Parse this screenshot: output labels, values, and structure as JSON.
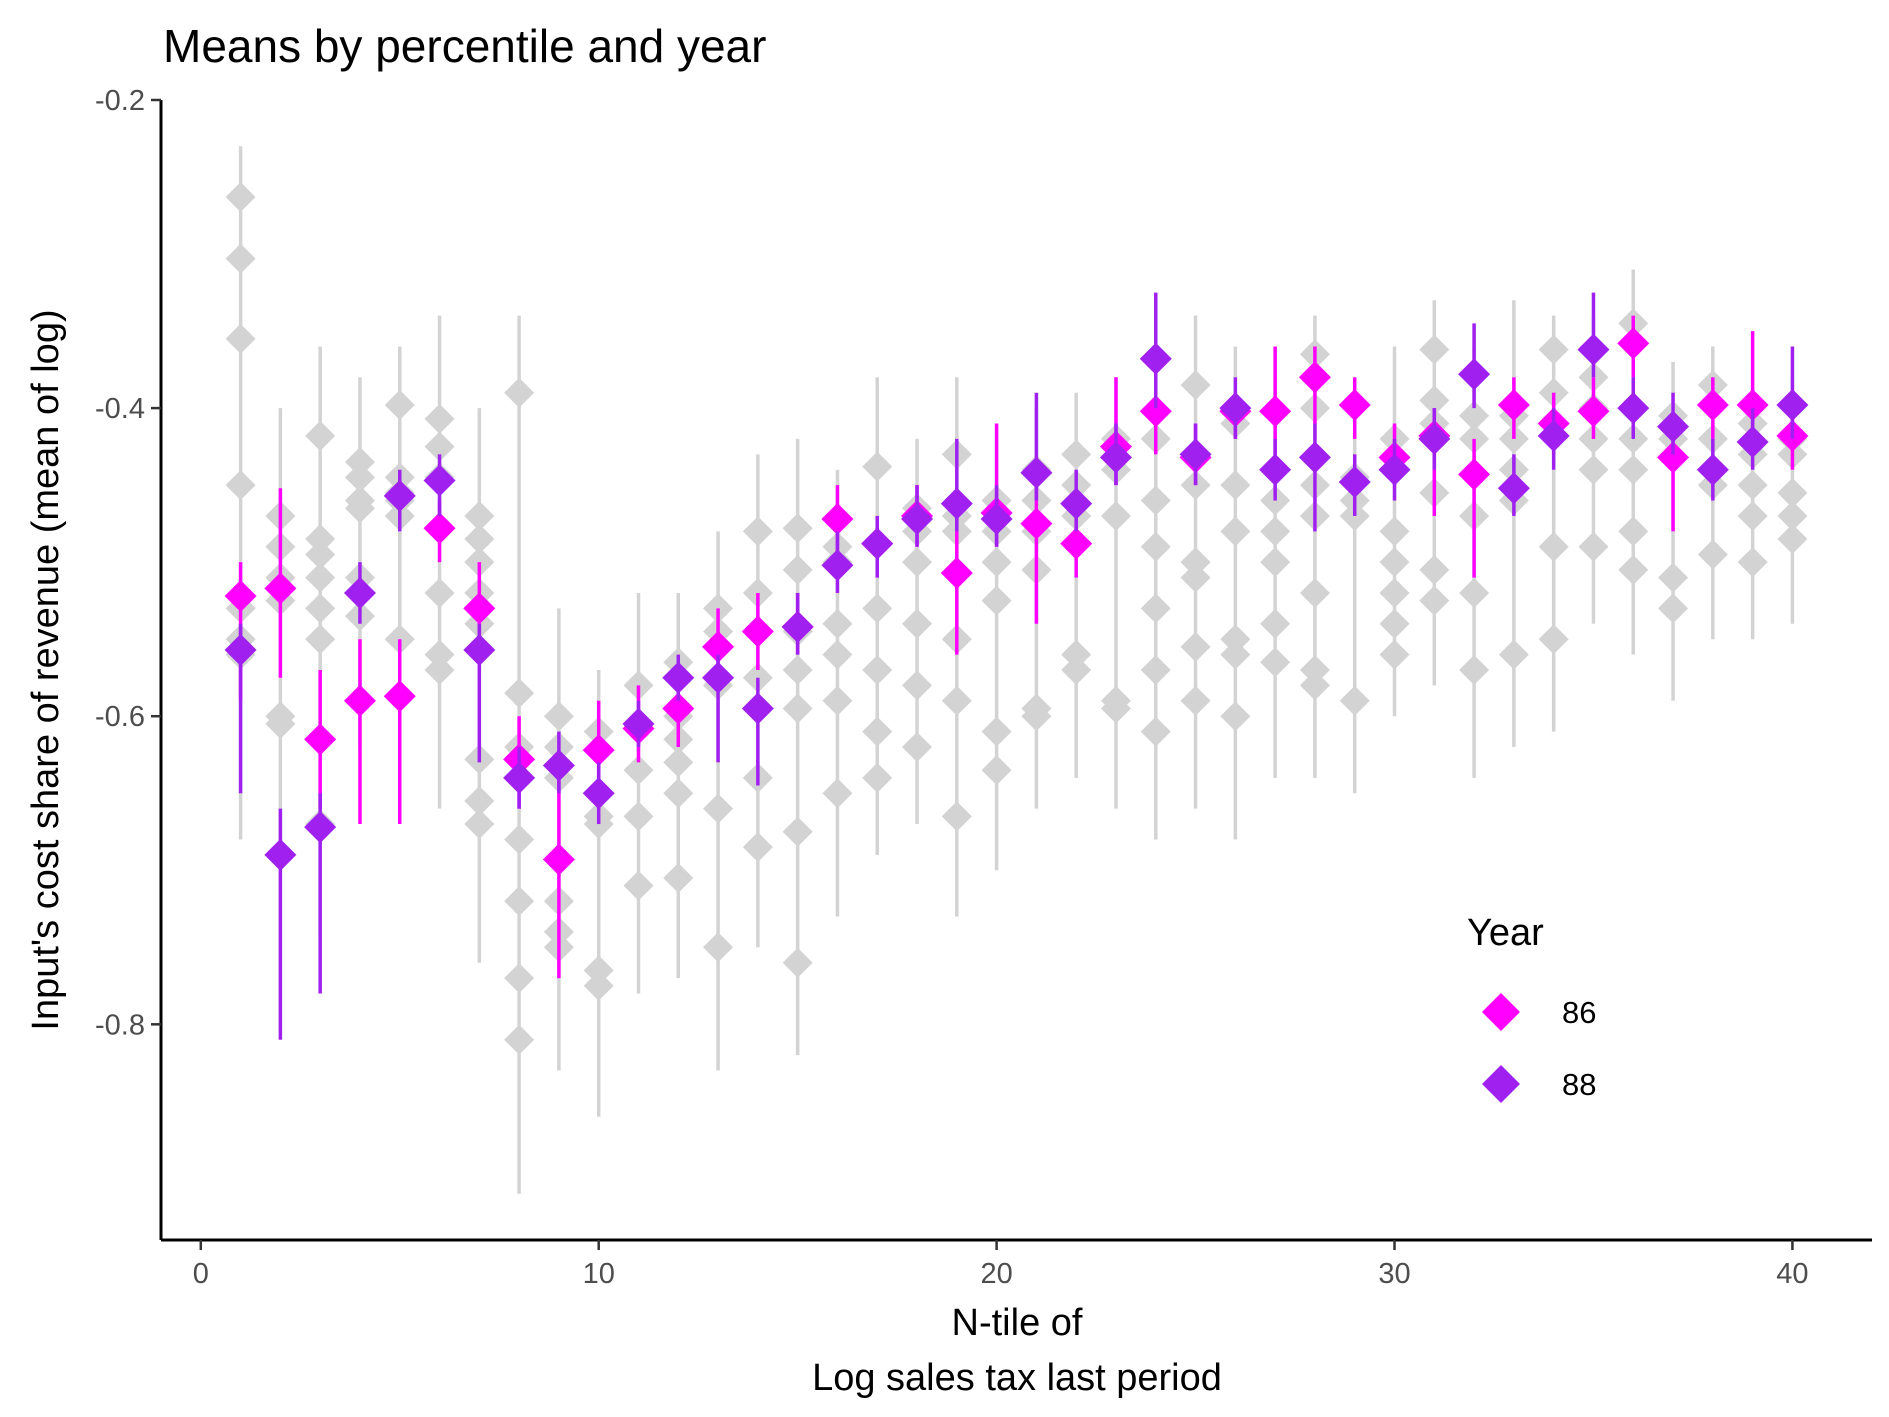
{
  "chart_data": {
    "type": "scatter",
    "title": "Means by percentile and year",
    "xlabel_lines": [
      "N-tile of",
      "Log sales tax last period"
    ],
    "ylabel": "Input's cost share of revenue (mean of log)",
    "xlim": [
      -1,
      42
    ],
    "ylim": [
      -0.94,
      -0.2
    ],
    "x_ticks": [
      0,
      10,
      20,
      30,
      40
    ],
    "x_tick_labels": [
      "0",
      "10",
      "20",
      "30",
      "40"
    ],
    "y_ticks": [
      -0.2,
      -0.4,
      -0.6,
      -0.8
    ],
    "y_tick_labels": [
      "-0.2",
      "-0.4",
      "-0.6",
      "-0.8"
    ],
    "grid": false,
    "legend": {
      "title": "Year",
      "placement": "bottom-right",
      "entries": [
        {
          "label": "86",
          "color": "#ff00ff"
        },
        {
          "label": "88",
          "color": "#a020f0"
        }
      ]
    },
    "other_years_color": "#d3d3d3",
    "series": [
      {
        "name": "86",
        "color": "#ff00ff",
        "points": [
          {
            "x": 1,
            "y": -0.522,
            "lo": -0.59,
            "hi": -0.5
          },
          {
            "x": 2,
            "y": -0.517,
            "lo": -0.575,
            "hi": -0.452
          },
          {
            "x": 3,
            "y": -0.615,
            "lo": -0.66,
            "hi": -0.57
          },
          {
            "x": 4,
            "y": -0.59,
            "lo": -0.67,
            "hi": -0.55
          },
          {
            "x": 5,
            "y": -0.587,
            "lo": -0.67,
            "hi": -0.55
          },
          {
            "x": 6,
            "y": -0.478,
            "lo": -0.5,
            "hi": -0.46
          },
          {
            "x": 7,
            "y": -0.53,
            "lo": -0.56,
            "hi": -0.5
          },
          {
            "x": 8,
            "y": -0.628,
            "lo": -0.66,
            "hi": -0.6
          },
          {
            "x": 9,
            "y": -0.693,
            "lo": -0.77,
            "hi": -0.64
          },
          {
            "x": 10,
            "y": -0.622,
            "lo": -0.66,
            "hi": -0.59
          },
          {
            "x": 11,
            "y": -0.608,
            "lo": -0.63,
            "hi": -0.58
          },
          {
            "x": 12,
            "y": -0.595,
            "lo": -0.62,
            "hi": -0.57
          },
          {
            "x": 13,
            "y": -0.555,
            "lo": -0.58,
            "hi": -0.53
          },
          {
            "x": 14,
            "y": -0.545,
            "lo": -0.57,
            "hi": -0.52
          },
          {
            "x": 15,
            "y": -0.542,
            "lo": -0.56,
            "hi": -0.52
          },
          {
            "x": 16,
            "y": -0.472,
            "lo": -0.5,
            "hi": -0.45
          },
          {
            "x": 17,
            "y": -0.488,
            "lo": -0.51,
            "hi": -0.47
          },
          {
            "x": 18,
            "y": -0.47,
            "lo": -0.49,
            "hi": -0.45
          },
          {
            "x": 19,
            "y": -0.507,
            "lo": -0.56,
            "hi": -0.47
          },
          {
            "x": 20,
            "y": -0.468,
            "lo": -0.49,
            "hi": -0.41
          },
          {
            "x": 21,
            "y": -0.475,
            "lo": -0.54,
            "hi": -0.45
          },
          {
            "x": 22,
            "y": -0.488,
            "lo": -0.51,
            "hi": -0.47
          },
          {
            "x": 23,
            "y": -0.425,
            "lo": -0.45,
            "hi": -0.38
          },
          {
            "x": 24,
            "y": -0.402,
            "lo": -0.43,
            "hi": -0.38
          },
          {
            "x": 25,
            "y": -0.432,
            "lo": -0.45,
            "hi": -0.41
          },
          {
            "x": 26,
            "y": -0.402,
            "lo": -0.42,
            "hi": -0.39
          },
          {
            "x": 27,
            "y": -0.402,
            "lo": -0.44,
            "hi": -0.36
          },
          {
            "x": 28,
            "y": -0.38,
            "lo": -0.41,
            "hi": -0.36
          },
          {
            "x": 29,
            "y": -0.398,
            "lo": -0.42,
            "hi": -0.38
          },
          {
            "x": 30,
            "y": -0.432,
            "lo": -0.45,
            "hi": -0.41
          },
          {
            "x": 31,
            "y": -0.418,
            "lo": -0.47,
            "hi": -0.4
          },
          {
            "x": 32,
            "y": -0.443,
            "lo": -0.51,
            "hi": -0.42
          },
          {
            "x": 33,
            "y": -0.398,
            "lo": -0.42,
            "hi": -0.38
          },
          {
            "x": 34,
            "y": -0.41,
            "lo": -0.43,
            "hi": -0.39
          },
          {
            "x": 35,
            "y": -0.402,
            "lo": -0.42,
            "hi": -0.38
          },
          {
            "x": 36,
            "y": -0.358,
            "lo": -0.38,
            "hi": -0.34
          },
          {
            "x": 37,
            "y": -0.432,
            "lo": -0.48,
            "hi": -0.41
          },
          {
            "x": 38,
            "y": -0.398,
            "lo": -0.42,
            "hi": -0.38
          },
          {
            "x": 39,
            "y": -0.398,
            "lo": -0.42,
            "hi": -0.35
          },
          {
            "x": 40,
            "y": -0.418,
            "lo": -0.44,
            "hi": -0.4
          }
        ]
      },
      {
        "name": "88",
        "color": "#a020f0",
        "points": [
          {
            "x": 1,
            "y": -0.557,
            "lo": -0.65,
            "hi": -0.54
          },
          {
            "x": 2,
            "y": -0.69,
            "lo": -0.81,
            "hi": -0.66
          },
          {
            "x": 3,
            "y": -0.672,
            "lo": -0.78,
            "hi": -0.65
          },
          {
            "x": 4,
            "y": -0.52,
            "lo": -0.54,
            "hi": -0.5
          },
          {
            "x": 5,
            "y": -0.457,
            "lo": -0.48,
            "hi": -0.44
          },
          {
            "x": 6,
            "y": -0.447,
            "lo": -0.47,
            "hi": -0.43
          },
          {
            "x": 7,
            "y": -0.557,
            "lo": -0.63,
            "hi": -0.54
          },
          {
            "x": 8,
            "y": -0.64,
            "lo": -0.66,
            "hi": -0.62
          },
          {
            "x": 9,
            "y": -0.632,
            "lo": -0.65,
            "hi": -0.61
          },
          {
            "x": 10,
            "y": -0.65,
            "lo": -0.67,
            "hi": -0.63
          },
          {
            "x": 11,
            "y": -0.605,
            "lo": -0.62,
            "hi": -0.59
          },
          {
            "x": 12,
            "y": -0.575,
            "lo": -0.59,
            "hi": -0.56
          },
          {
            "x": 13,
            "y": -0.575,
            "lo": -0.63,
            "hi": -0.56
          },
          {
            "x": 14,
            "y": -0.595,
            "lo": -0.645,
            "hi": -0.575
          },
          {
            "x": 15,
            "y": -0.542,
            "lo": -0.56,
            "hi": -0.52
          },
          {
            "x": 16,
            "y": -0.502,
            "lo": -0.52,
            "hi": -0.48
          },
          {
            "x": 17,
            "y": -0.488,
            "lo": -0.51,
            "hi": -0.47
          },
          {
            "x": 18,
            "y": -0.472,
            "lo": -0.49,
            "hi": -0.45
          },
          {
            "x": 19,
            "y": -0.462,
            "lo": -0.48,
            "hi": -0.42
          },
          {
            "x": 20,
            "y": -0.472,
            "lo": -0.49,
            "hi": -0.45
          },
          {
            "x": 21,
            "y": -0.442,
            "lo": -0.46,
            "hi": -0.39
          },
          {
            "x": 22,
            "y": -0.462,
            "lo": -0.48,
            "hi": -0.44
          },
          {
            "x": 23,
            "y": -0.432,
            "lo": -0.45,
            "hi": -0.41
          },
          {
            "x": 24,
            "y": -0.368,
            "lo": -0.4,
            "hi": -0.325
          },
          {
            "x": 25,
            "y": -0.43,
            "lo": -0.45,
            "hi": -0.41
          },
          {
            "x": 26,
            "y": -0.4,
            "lo": -0.42,
            "hi": -0.38
          },
          {
            "x": 27,
            "y": -0.44,
            "lo": -0.46,
            "hi": -0.42
          },
          {
            "x": 28,
            "y": -0.432,
            "lo": -0.48,
            "hi": -0.41
          },
          {
            "x": 29,
            "y": -0.448,
            "lo": -0.47,
            "hi": -0.43
          },
          {
            "x": 30,
            "y": -0.44,
            "lo": -0.46,
            "hi": -0.42
          },
          {
            "x": 31,
            "y": -0.42,
            "lo": -0.44,
            "hi": -0.4
          },
          {
            "x": 32,
            "y": -0.378,
            "lo": -0.4,
            "hi": -0.345
          },
          {
            "x": 33,
            "y": -0.452,
            "lo": -0.47,
            "hi": -0.43
          },
          {
            "x": 34,
            "y": -0.418,
            "lo": -0.44,
            "hi": -0.4
          },
          {
            "x": 35,
            "y": -0.362,
            "lo": -0.38,
            "hi": -0.325
          },
          {
            "x": 36,
            "y": -0.4,
            "lo": -0.42,
            "hi": -0.38
          },
          {
            "x": 37,
            "y": -0.412,
            "lo": -0.43,
            "hi": -0.39
          },
          {
            "x": 38,
            "y": -0.44,
            "lo": -0.46,
            "hi": -0.42
          },
          {
            "x": 39,
            "y": -0.422,
            "lo": -0.44,
            "hi": -0.4
          },
          {
            "x": 40,
            "y": -0.398,
            "lo": -0.42,
            "hi": -0.36
          }
        ]
      }
    ],
    "other_years": [
      {
        "x": 1,
        "means": [
          -0.263,
          -0.303,
          -0.355,
          -0.45,
          -0.53,
          -0.55,
          -0.56
        ],
        "lo": -0.68,
        "hi": -0.23
      },
      {
        "x": 2,
        "means": [
          -0.47,
          -0.49,
          -0.51,
          -0.525,
          -0.6,
          -0.605
        ],
        "lo": -0.7,
        "hi": -0.4
      },
      {
        "x": 3,
        "means": [
          -0.418,
          -0.485,
          -0.495,
          -0.51,
          -0.53,
          -0.55,
          -0.67
        ],
        "lo": -0.74,
        "hi": -0.36
      },
      {
        "x": 4,
        "means": [
          -0.435,
          -0.445,
          -0.46,
          -0.465,
          -0.51,
          -0.535
        ],
        "lo": -0.62,
        "hi": -0.38
      },
      {
        "x": 5,
        "means": [
          -0.398,
          -0.445,
          -0.455,
          -0.46,
          -0.47,
          -0.55
        ],
        "lo": -0.62,
        "hi": -0.36
      },
      {
        "x": 6,
        "means": [
          -0.407,
          -0.425,
          -0.445,
          -0.52,
          -0.56,
          -0.57
        ],
        "lo": -0.66,
        "hi": -0.34
      },
      {
        "x": 7,
        "means": [
          -0.47,
          -0.485,
          -0.5,
          -0.52,
          -0.54,
          -0.628,
          -0.655,
          -0.67
        ],
        "lo": -0.76,
        "hi": -0.4
      },
      {
        "x": 8,
        "means": [
          -0.39,
          -0.585,
          -0.62,
          -0.68,
          -0.72,
          -0.77,
          -0.81
        ],
        "lo": -0.91,
        "hi": -0.34
      },
      {
        "x": 9,
        "means": [
          -0.6,
          -0.62,
          -0.64,
          -0.72,
          -0.74,
          -0.75
        ],
        "lo": -0.83,
        "hi": -0.53
      },
      {
        "x": 10,
        "means": [
          -0.61,
          -0.665,
          -0.67,
          -0.765,
          -0.775
        ],
        "lo": -0.86,
        "hi": -0.57
      },
      {
        "x": 11,
        "means": [
          -0.58,
          -0.605,
          -0.635,
          -0.665,
          -0.71
        ],
        "lo": -0.78,
        "hi": -0.52
      },
      {
        "x": 12,
        "means": [
          -0.565,
          -0.6,
          -0.615,
          -0.63,
          -0.65,
          -0.705
        ],
        "lo": -0.77,
        "hi": -0.52
      },
      {
        "x": 13,
        "means": [
          -0.53,
          -0.545,
          -0.58,
          -0.66,
          -0.75
        ],
        "lo": -0.83,
        "hi": -0.48
      },
      {
        "x": 14,
        "means": [
          -0.48,
          -0.52,
          -0.545,
          -0.575,
          -0.64,
          -0.685
        ],
        "lo": -0.75,
        "hi": -0.43
      },
      {
        "x": 15,
        "means": [
          -0.478,
          -0.505,
          -0.545,
          -0.57,
          -0.595,
          -0.675,
          -0.76
        ],
        "lo": -0.82,
        "hi": -0.42
      },
      {
        "x": 16,
        "means": [
          -0.49,
          -0.5,
          -0.54,
          -0.56,
          -0.59,
          -0.65
        ],
        "lo": -0.73,
        "hi": -0.44
      },
      {
        "x": 17,
        "means": [
          -0.438,
          -0.53,
          -0.57,
          -0.61,
          -0.64
        ],
        "lo": -0.69,
        "hi": -0.38
      },
      {
        "x": 18,
        "means": [
          -0.465,
          -0.48,
          -0.5,
          -0.54,
          -0.58,
          -0.62
        ],
        "lo": -0.67,
        "hi": -0.42
      },
      {
        "x": 19,
        "means": [
          -0.43,
          -0.47,
          -0.48,
          -0.55,
          -0.59,
          -0.665
        ],
        "lo": -0.73,
        "hi": -0.38
      },
      {
        "x": 20,
        "means": [
          -0.46,
          -0.48,
          -0.5,
          -0.525,
          -0.61,
          -0.635
        ],
        "lo": -0.7,
        "hi": -0.42
      },
      {
        "x": 21,
        "means": [
          -0.44,
          -0.46,
          -0.48,
          -0.505,
          -0.595,
          -0.6
        ],
        "lo": -0.66,
        "hi": -0.4
      },
      {
        "x": 22,
        "means": [
          -0.43,
          -0.45,
          -0.47,
          -0.56,
          -0.57
        ],
        "lo": -0.64,
        "hi": -0.39
      },
      {
        "x": 23,
        "means": [
          -0.42,
          -0.44,
          -0.47,
          -0.59,
          -0.595
        ],
        "lo": -0.66,
        "hi": -0.38
      },
      {
        "x": 24,
        "means": [
          -0.42,
          -0.46,
          -0.49,
          -0.53,
          -0.57,
          -0.61
        ],
        "lo": -0.68,
        "hi": -0.38
      },
      {
        "x": 25,
        "means": [
          -0.385,
          -0.45,
          -0.5,
          -0.51,
          -0.555,
          -0.59
        ],
        "lo": -0.66,
        "hi": -0.34
      },
      {
        "x": 26,
        "means": [
          -0.41,
          -0.45,
          -0.48,
          -0.55,
          -0.56,
          -0.6
        ],
        "lo": -0.68,
        "hi": -0.36
      },
      {
        "x": 27,
        "means": [
          -0.44,
          -0.46,
          -0.48,
          -0.5,
          -0.54,
          -0.565
        ],
        "lo": -0.64,
        "hi": -0.38
      },
      {
        "x": 28,
        "means": [
          -0.365,
          -0.4,
          -0.45,
          -0.47,
          -0.52,
          -0.57,
          -0.58
        ],
        "lo": -0.64,
        "hi": -0.34
      },
      {
        "x": 29,
        "means": [
          -0.445,
          -0.46,
          -0.47,
          -0.59
        ],
        "lo": -0.65,
        "hi": -0.38
      },
      {
        "x": 30,
        "means": [
          -0.42,
          -0.48,
          -0.5,
          -0.52,
          -0.54,
          -0.56
        ],
        "lo": -0.6,
        "hi": -0.36
      },
      {
        "x": 31,
        "means": [
          -0.362,
          -0.395,
          -0.41,
          -0.455,
          -0.505,
          -0.525
        ],
        "lo": -0.58,
        "hi": -0.33
      },
      {
        "x": 32,
        "means": [
          -0.405,
          -0.42,
          -0.47,
          -0.52,
          -0.57
        ],
        "lo": -0.64,
        "hi": -0.36
      },
      {
        "x": 33,
        "means": [
          -0.405,
          -0.42,
          -0.44,
          -0.46,
          -0.56
        ],
        "lo": -0.62,
        "hi": -0.33
      },
      {
        "x": 34,
        "means": [
          -0.362,
          -0.39,
          -0.41,
          -0.49,
          -0.55
        ],
        "lo": -0.61,
        "hi": -0.34
      },
      {
        "x": 35,
        "means": [
          -0.38,
          -0.4,
          -0.42,
          -0.44,
          -0.49
        ],
        "lo": -0.54,
        "hi": -0.34
      },
      {
        "x": 36,
        "means": [
          -0.345,
          -0.4,
          -0.42,
          -0.44,
          -0.48,
          -0.505
        ],
        "lo": -0.56,
        "hi": -0.31
      },
      {
        "x": 37,
        "means": [
          -0.405,
          -0.42,
          -0.51,
          -0.53
        ],
        "lo": -0.59,
        "hi": -0.37
      },
      {
        "x": 38,
        "means": [
          -0.385,
          -0.42,
          -0.44,
          -0.45,
          -0.495
        ],
        "lo": -0.55,
        "hi": -0.36
      },
      {
        "x": 39,
        "means": [
          -0.41,
          -0.43,
          -0.45,
          -0.47,
          -0.5
        ],
        "lo": -0.55,
        "hi": -0.37
      },
      {
        "x": 40,
        "means": [
          -0.42,
          -0.43,
          -0.455,
          -0.47,
          -0.485
        ],
        "lo": -0.54,
        "hi": -0.38
      }
    ]
  }
}
